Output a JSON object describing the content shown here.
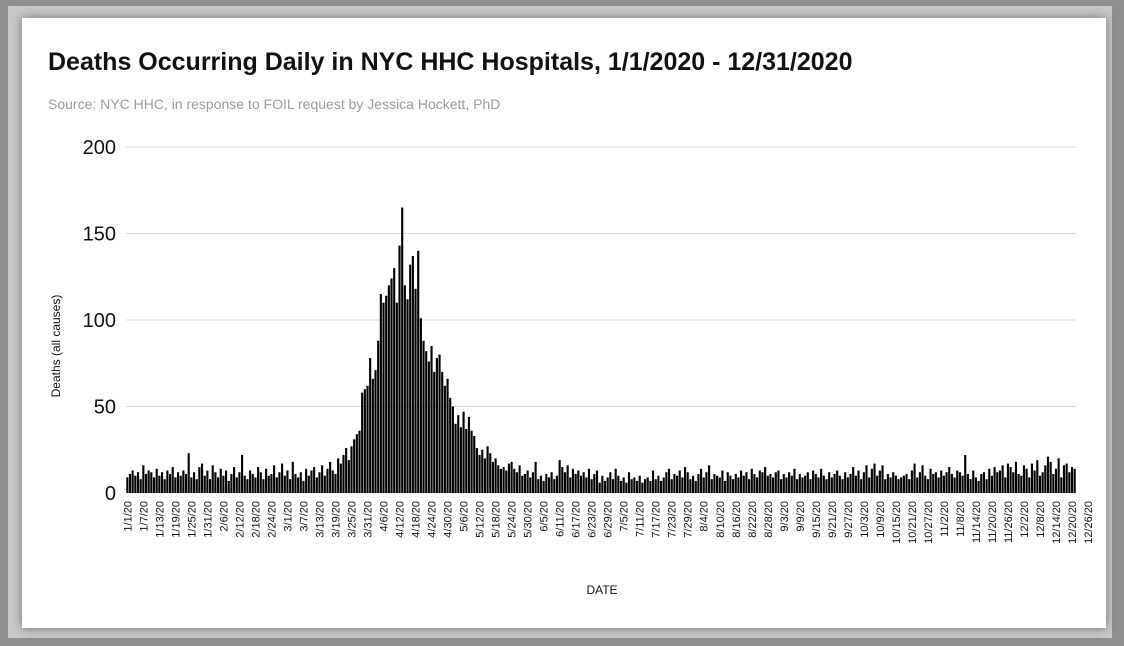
{
  "chart_data": {
    "type": "bar",
    "title": "Deaths Occurring Daily in NYC HHC Hospitals, 1/1/2020 - 12/31/2020",
    "subtitle": "Source: NYC HHC, in response to FOIL request by Jessica Hockett, PhD",
    "xlabel": "DATE",
    "ylabel": "Deaths (all causes)",
    "ylim": [
      0,
      200
    ],
    "yticks": [
      0,
      50,
      100,
      150,
      200
    ],
    "grid": true,
    "legend": "none",
    "bar_color": "#000000",
    "x_start": "2020-01-01",
    "x_end": "2020-12-31",
    "x_tick_labels": [
      "1/1/20",
      "1/7/20",
      "1/13/20",
      "1/19/20",
      "1/25/20",
      "1/31/20",
      "2/6/20",
      "2/12/20",
      "2/18/20",
      "2/24/20",
      "3/1/20",
      "3/7/20",
      "3/13/20",
      "3/19/20",
      "3/25/20",
      "3/31/20",
      "4/6/20",
      "4/12/20",
      "4/18/20",
      "4/24/20",
      "4/30/20",
      "5/6/20",
      "5/12/20",
      "5/18/20",
      "5/24/20",
      "5/30/20",
      "6/5/20",
      "6/11/20",
      "6/17/20",
      "6/23/20",
      "6/29/20",
      "7/5/20",
      "7/11/20",
      "7/17/20",
      "7/23/20",
      "7/29/20",
      "8/4/20",
      "8/10/20",
      "8/16/20",
      "8/22/20",
      "8/28/20",
      "9/3/20",
      "9/9/20",
      "9/15/20",
      "9/21/20",
      "9/27/20",
      "10/3/20",
      "10/9/20",
      "10/15/20",
      "10/21/20",
      "10/27/20",
      "11/2/20",
      "11/8/20",
      "11/14/20",
      "11/20/20",
      "11/26/20",
      "12/2/20",
      "12/8/20",
      "12/14/20",
      "12/20/20",
      "12/26/20"
    ],
    "values": [
      9,
      11,
      13,
      10,
      12,
      8,
      16,
      11,
      13,
      12,
      9,
      14,
      10,
      12,
      8,
      13,
      11,
      15,
      9,
      12,
      10,
      13,
      11,
      23,
      9,
      12,
      8,
      15,
      17,
      10,
      13,
      8,
      16,
      12,
      9,
      14,
      10,
      13,
      7,
      11,
      15,
      9,
      12,
      22,
      10,
      8,
      13,
      11,
      9,
      15,
      12,
      8,
      14,
      10,
      11,
      16,
      9,
      12,
      17,
      10,
      13,
      8,
      18,
      11,
      9,
      12,
      7,
      14,
      10,
      13,
      15,
      9,
      12,
      16,
      10,
      14,
      18,
      13,
      11,
      20,
      17,
      22,
      26,
      19,
      27,
      31,
      34,
      36,
      58,
      60,
      62,
      78,
      66,
      71,
      88,
      115,
      110,
      114,
      120,
      124,
      130,
      110,
      143,
      165,
      120,
      112,
      132,
      137,
      118,
      140,
      101,
      88,
      82,
      76,
      85,
      70,
      78,
      80,
      70,
      62,
      66,
      55,
      50,
      40,
      45,
      38,
      47,
      37,
      44,
      36,
      33,
      26,
      22,
      25,
      20,
      27,
      23,
      18,
      20,
      16,
      14,
      15,
      13,
      17,
      18,
      14,
      12,
      16,
      10,
      11,
      13,
      9,
      12,
      18,
      8,
      10,
      7,
      11,
      9,
      12,
      8,
      10,
      19,
      15,
      12,
      16,
      9,
      14,
      11,
      13,
      10,
      12,
      9,
      14,
      8,
      11,
      13,
      6,
      10,
      7,
      9,
      12,
      8,
      14,
      10,
      7,
      9,
      6,
      12,
      8,
      9,
      7,
      10,
      6,
      8,
      9,
      7,
      13,
      8,
      10,
      7,
      9,
      12,
      14,
      8,
      11,
      10,
      13,
      9,
      15,
      12,
      8,
      10,
      7,
      11,
      14,
      9,
      12,
      16,
      8,
      11,
      10,
      9,
      13,
      7,
      12,
      10,
      8,
      11,
      9,
      13,
      10,
      12,
      8,
      14,
      11,
      9,
      13,
      12,
      15,
      10,
      11,
      9,
      12,
      13,
      8,
      11,
      9,
      12,
      10,
      14,
      8,
      11,
      9,
      10,
      12,
      8,
      13,
      11,
      9,
      14,
      10,
      8,
      12,
      9,
      11,
      13,
      10,
      8,
      12,
      9,
      11,
      15,
      10,
      13,
      8,
      12,
      16,
      9,
      14,
      17,
      10,
      13,
      16,
      8,
      11,
      9,
      12,
      10,
      8,
      9,
      10,
      11,
      8,
      13,
      17,
      9,
      12,
      16,
      10,
      8,
      14,
      11,
      12,
      9,
      13,
      10,
      12,
      15,
      11,
      9,
      13,
      12,
      10,
      22,
      11,
      8,
      13,
      9,
      7,
      11,
      12,
      8,
      14,
      10,
      15,
      12,
      13,
      16,
      9,
      17,
      15,
      12,
      18,
      11,
      10,
      16,
      14,
      9,
      17,
      13,
      19,
      10,
      12,
      16,
      21,
      18,
      11,
      14,
      20,
      9,
      16,
      17,
      12,
      15,
      14
    ]
  }
}
